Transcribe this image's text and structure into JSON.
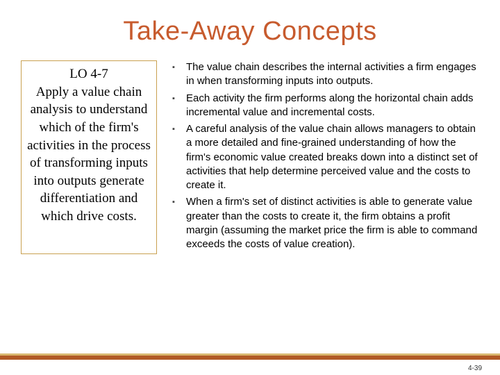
{
  "title": "Take-Away Concepts",
  "left": {
    "lo_label": "LO 4-7",
    "lo_text": "Apply a value chain analysis to understand which of the firm's activities in the process of transforming inputs into outputs generate differentiation and which drive costs."
  },
  "bullets": [
    "The value chain describes the internal activities a firm engages in when transforming inputs into outputs.",
    "Each activity the firm performs along the horizontal chain adds incremental value and incremental costs.",
    "A careful analysis of the value chain allows managers to obtain a more detailed and fine-grained understanding of how the firm's economic value created breaks down into a distinct set of activities that help determine perceived value and the costs to create it.",
    "When a firm's set of distinct activities is able to generate value greater than the costs to create it, the firm obtains a profit margin (assuming the market price the firm is able to command exceeds the costs of value creation)."
  ],
  "page_number": "4-39",
  "colors": {
    "title": "#c75b2e",
    "box_border": "#c9a050",
    "footer_bar": "#b15a26",
    "footer_accent": "#d9b870"
  }
}
